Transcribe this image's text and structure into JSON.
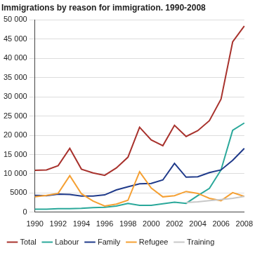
{
  "chart_data": {
    "type": "line",
    "title": "Immigrations by reason for immigration. 1990-2008",
    "categories": [
      "1990",
      null,
      "1992",
      null,
      "1994",
      null,
      "1996",
      null,
      "1998",
      null,
      "2000",
      null,
      "2002",
      null,
      "2004",
      null,
      "2006",
      null,
      "2008"
    ],
    "series": [
      {
        "name": "Total",
        "color": "#a8322d",
        "values": [
          10900,
          11000,
          12100,
          16600,
          11200,
          10200,
          9600,
          11500,
          14300,
          22100,
          18800,
          17300,
          22600,
          19700,
          21200,
          23800,
          29400,
          44300,
          48400
        ]
      },
      {
        "name": "Labour",
        "color": "#2aa89a",
        "values": [
          800,
          800,
          900,
          900,
          1000,
          1200,
          1300,
          1600,
          2300,
          1800,
          1800,
          2200,
          2600,
          2300,
          4300,
          6200,
          11000,
          21300,
          23200
        ]
      },
      {
        "name": "Family",
        "color": "#1f3a8a",
        "values": [
          4400,
          4300,
          4700,
          4600,
          4200,
          4200,
          4500,
          5800,
          6600,
          7400,
          7500,
          8400,
          12700,
          9100,
          9200,
          10300,
          11000,
          13500,
          16600
        ]
      },
      {
        "name": "Refugee",
        "color": "#f5a033",
        "values": [
          4000,
          4400,
          4900,
          9500,
          4800,
          2900,
          1600,
          2100,
          3100,
          10500,
          6300,
          4000,
          4300,
          5400,
          4900,
          3600,
          3000,
          5100,
          4100
        ]
      },
      {
        "name": "Training",
        "color": "#c8c8c8",
        "values": [
          null,
          null,
          null,
          null,
          null,
          null,
          null,
          null,
          null,
          null,
          null,
          null,
          null,
          2500,
          2700,
          3000,
          3300,
          3600,
          4100
        ]
      }
    ],
    "ylim": [
      0,
      50000
    ],
    "yticks": [
      0,
      5000,
      {
        "value": 10000,
        "label": "10 000"
      },
      {
        "value": 15000,
        "label": "15 000"
      },
      {
        "value": 20000,
        "label": "20 000"
      },
      {
        "value": 25000,
        "label": "25 000"
      },
      {
        "value": 30000,
        "label": "30 000"
      },
      {
        "value": 35000,
        "label": "35 000"
      },
      {
        "value": 40000,
        "label": "40 000"
      },
      {
        "value": 45000,
        "label": "45 000"
      },
      {
        "value": 50000,
        "label": "50 000"
      }
    ],
    "grid": true,
    "legend": "bottom"
  }
}
